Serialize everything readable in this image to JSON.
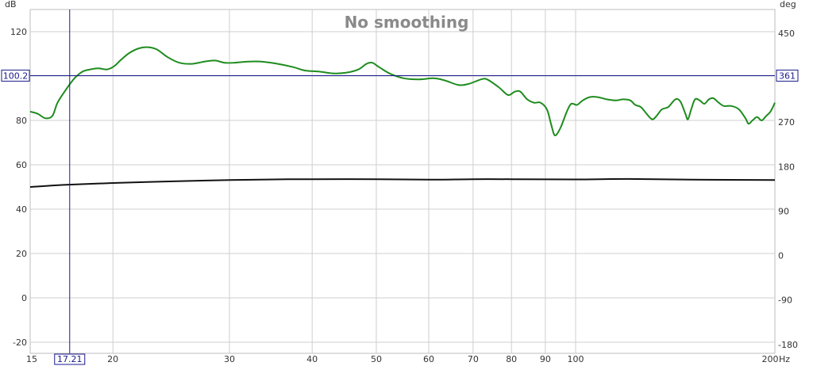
{
  "chart_data": {
    "type": "line",
    "title": "No smoothing",
    "x_unit": "Hz",
    "y_left_unit": "dB",
    "y_right_unit": "deg",
    "x_scale": "log",
    "xlim": [
      15,
      200
    ],
    "ylim_left": [
      -25,
      130
    ],
    "ylim_right": [
      -198,
      498
    ],
    "x_ticks": [
      15,
      20,
      30,
      40,
      50,
      60,
      70,
      80,
      90,
      100,
      200
    ],
    "x_tick_labels": [
      "15",
      "20",
      "30",
      "40",
      "50",
      "60",
      "70",
      "80",
      "90",
      "100",
      "200"
    ],
    "x_tick_unit_label": "Hz",
    "y_left_ticks": [
      -20,
      0,
      20,
      40,
      60,
      80,
      100,
      120
    ],
    "y_left_tick_labels": [
      "-20",
      "0",
      "20",
      "40",
      "60",
      "80",
      "100",
      "120"
    ],
    "y_right_ticks": [
      -180,
      -90,
      0,
      90,
      180,
      270,
      360,
      450
    ],
    "y_right_tick_labels": [
      "-180",
      "-90",
      "0",
      "90",
      "180",
      "270",
      "360",
      "450"
    ],
    "grid": true,
    "cursor": {
      "x": 17.21,
      "y": 100.2,
      "x_label": "17.21",
      "y_label": "100.2",
      "y_right_label": "361"
    },
    "series": [
      {
        "color": "#1e8c1e",
        "axis": "left",
        "points": [
          [
            15,
            84
          ],
          [
            15.4,
            83
          ],
          [
            15.8,
            81
          ],
          [
            16.2,
            82
          ],
          [
            16.5,
            88
          ],
          [
            17,
            94
          ],
          [
            17.5,
            99
          ],
          [
            18,
            102
          ],
          [
            18.5,
            103
          ],
          [
            19,
            103.5
          ],
          [
            19.6,
            103
          ],
          [
            20.1,
            104.5
          ],
          [
            20.6,
            107.5
          ],
          [
            21.2,
            110.5
          ],
          [
            21.9,
            112.5
          ],
          [
            22.6,
            113
          ],
          [
            23.3,
            112
          ],
          [
            24.2,
            108.5
          ],
          [
            25.2,
            106
          ],
          [
            26.3,
            105.5
          ],
          [
            27.5,
            106.5
          ],
          [
            28.5,
            107
          ],
          [
            29.5,
            106
          ],
          [
            30.5,
            106
          ],
          [
            32,
            106.5
          ],
          [
            33.5,
            106.5
          ],
          [
            35.5,
            105.5
          ],
          [
            37.5,
            104
          ],
          [
            39,
            102.5
          ],
          [
            41,
            102
          ],
          [
            43,
            101.2
          ],
          [
            45,
            101.5
          ],
          [
            47,
            103
          ],
          [
            48.3,
            105.5
          ],
          [
            49.3,
            106
          ],
          [
            50.5,
            104
          ],
          [
            52.5,
            101
          ],
          [
            55,
            99
          ],
          [
            58,
            98.5
          ],
          [
            61,
            99
          ],
          [
            63.5,
            98
          ],
          [
            66.5,
            96
          ],
          [
            69,
            96.5
          ],
          [
            72,
            98.5
          ],
          [
            73.5,
            98.5
          ],
          [
            76.5,
            95
          ],
          [
            78.5,
            92
          ],
          [
            79.5,
            91.5
          ],
          [
            81,
            93
          ],
          [
            82.5,
            93
          ],
          [
            84.5,
            89.5
          ],
          [
            86.5,
            88
          ],
          [
            88.5,
            88
          ],
          [
            90.5,
            85
          ],
          [
            91.7,
            79
          ],
          [
            92.7,
            74
          ],
          [
            93.5,
            73.5
          ],
          [
            95,
            77
          ],
          [
            97,
            84
          ],
          [
            98.5,
            87.5
          ],
          [
            100.5,
            87
          ],
          [
            102.5,
            89
          ],
          [
            105,
            90.5
          ],
          [
            108,
            90.5
          ],
          [
            111.5,
            89.5
          ],
          [
            115,
            89
          ],
          [
            118,
            89.5
          ],
          [
            121,
            89
          ],
          [
            123,
            87
          ],
          [
            125.5,
            86
          ],
          [
            128,
            83
          ],
          [
            130.5,
            80.5
          ],
          [
            132.5,
            82
          ],
          [
            135,
            85
          ],
          [
            138,
            86
          ],
          [
            141.5,
            89.5
          ],
          [
            144,
            88.5
          ],
          [
            146.5,
            83
          ],
          [
            147.8,
            80.5
          ],
          [
            149.5,
            85
          ],
          [
            151.5,
            89.5
          ],
          [
            154,
            89
          ],
          [
            156.5,
            87.5
          ],
          [
            159,
            89.5
          ],
          [
            161.5,
            90
          ],
          [
            164.5,
            88
          ],
          [
            167.5,
            86.5
          ],
          [
            172,
            86.5
          ],
          [
            176.5,
            85
          ],
          [
            180.5,
            81
          ],
          [
            182.5,
            78.5
          ],
          [
            185,
            80
          ],
          [
            188,
            81.5
          ],
          [
            191,
            80
          ],
          [
            194,
            82
          ],
          [
            197,
            84
          ],
          [
            200,
            88
          ]
        ]
      },
      {
        "color": "#111111",
        "axis": "left",
        "points": [
          [
            15,
            50
          ],
          [
            17,
            51
          ],
          [
            20,
            51.8
          ],
          [
            25,
            52.6
          ],
          [
            30,
            53.1
          ],
          [
            35,
            53.4
          ],
          [
            40,
            53.5
          ],
          [
            50,
            53.5
          ],
          [
            60,
            53.3
          ],
          [
            70,
            53.5
          ],
          [
            80,
            53.5
          ],
          [
            100,
            53.4
          ],
          [
            120,
            53.6
          ],
          [
            150,
            53.3
          ],
          [
            200,
            53.1
          ]
        ]
      }
    ]
  }
}
